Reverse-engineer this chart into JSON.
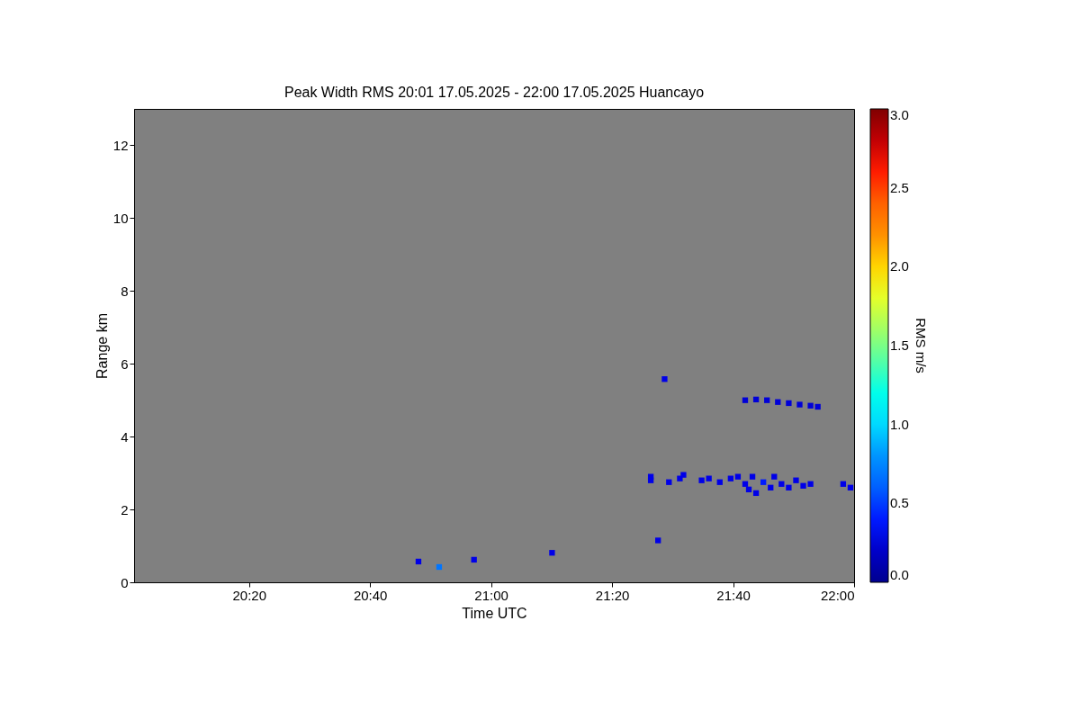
{
  "chart_data": {
    "type": "scatter",
    "title": "Peak Width RMS   20:01 17.05.2025 - 22:00 17.05.2025 Huancayo",
    "xlabel": "Time UTC",
    "ylabel": "Range km",
    "clabel": "RMS m/s",
    "marker": "square",
    "grid": false,
    "xlim": [
      20.0167,
      22.0
    ],
    "xticks": [
      {
        "value": 20.3333,
        "label": "20:20"
      },
      {
        "value": 20.6667,
        "label": "20:40"
      },
      {
        "value": 21.0,
        "label": "21:00"
      },
      {
        "value": 21.3333,
        "label": "21:20"
      },
      {
        "value": 21.6667,
        "label": "21:40"
      },
      {
        "value": 22.0,
        "label": "22:00"
      }
    ],
    "ylim": [
      0,
      13
    ],
    "yticks": [
      0,
      2,
      4,
      6,
      8,
      10,
      12
    ],
    "clim": [
      0,
      3
    ],
    "cticks": [
      {
        "value": 0,
        "label": "0.0"
      },
      {
        "value": 0.5,
        "label": "0.5"
      },
      {
        "value": 1,
        "label": "1.0"
      },
      {
        "value": 1.5,
        "label": "1.5"
      },
      {
        "value": 2,
        "label": "2.0"
      },
      {
        "value": 2.5,
        "label": "2.5"
      },
      {
        "value": 3,
        "label": "3.0"
      }
    ],
    "x": [
      20.8,
      20.857,
      20.953,
      21.168,
      21.46,
      21.478,
      21.44,
      21.44,
      21.49,
      21.52,
      21.53,
      21.58,
      21.6,
      21.63,
      21.66,
      21.68,
      21.7,
      21.71,
      21.72,
      21.73,
      21.75,
      21.77,
      21.78,
      21.8,
      21.82,
      21.84,
      21.86,
      21.88,
      21.97,
      21.99,
      21.7,
      21.73,
      21.76,
      21.79,
      21.82,
      21.85,
      21.88,
      21.9
    ],
    "values": [
      0.57,
      0.42,
      0.62,
      0.81,
      1.15,
      5.58,
      2.8,
      2.9,
      2.75,
      2.85,
      2.95,
      2.8,
      2.85,
      2.75,
      2.85,
      2.9,
      2.7,
      2.55,
      2.9,
      2.45,
      2.75,
      2.6,
      2.9,
      2.7,
      2.6,
      2.8,
      2.65,
      2.7,
      2.7,
      2.6,
      5.0,
      5.02,
      5.0,
      4.95,
      4.92,
      4.88,
      4.85,
      4.82
    ],
    "cvalues": [
      0.3,
      0.7,
      0.3,
      0.3,
      0.3,
      0.3,
      0.3,
      0.3,
      0.3,
      0.3,
      0.3,
      0.3,
      0.3,
      0.3,
      0.3,
      0.3,
      0.3,
      0.3,
      0.3,
      0.3,
      0.4,
      0.3,
      0.3,
      0.3,
      0.3,
      0.3,
      0.3,
      0.3,
      0.3,
      0.3,
      0.25,
      0.25,
      0.25,
      0.25,
      0.25,
      0.25,
      0.25,
      0.25
    ]
  }
}
